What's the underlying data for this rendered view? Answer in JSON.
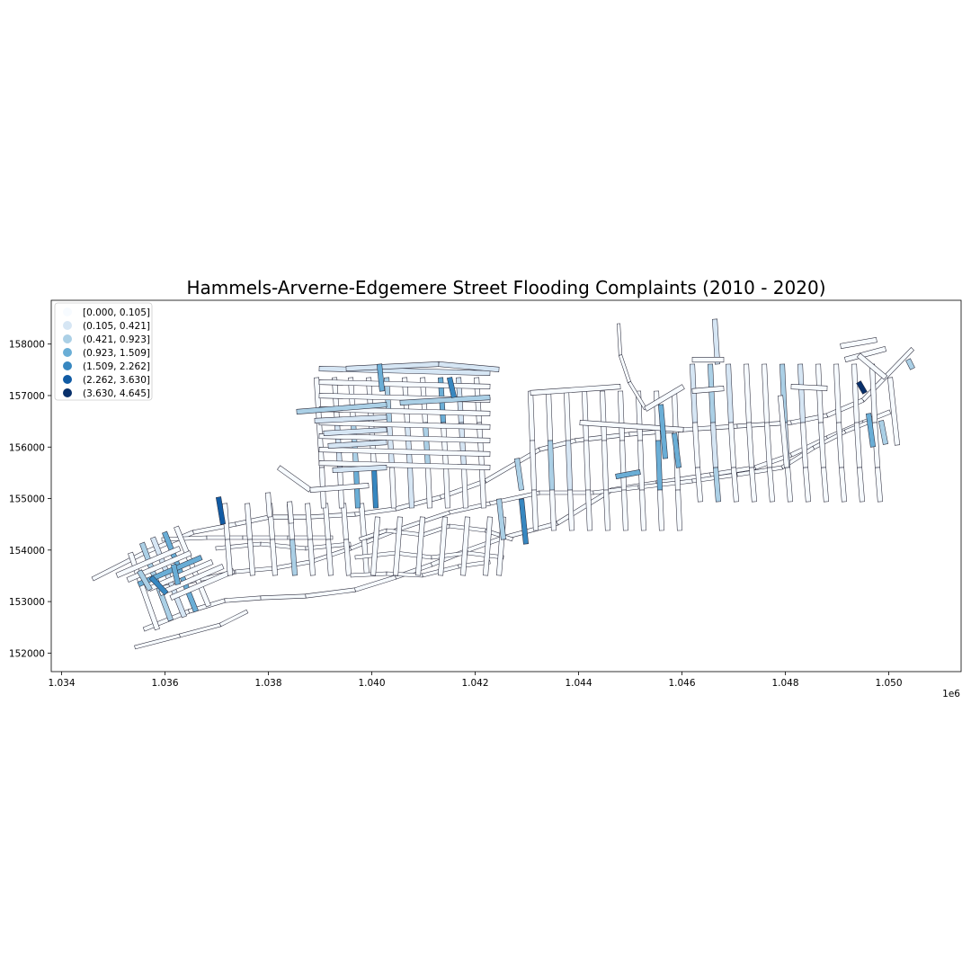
{
  "map": {
    "title": "Hammels-Arverne-Edgemere Street Flooding Complaints (2010 - 2020)",
    "x_axis": {
      "ticks": [
        "1.034",
        "1.036",
        "1.038",
        "1.040",
        "1.042",
        "1.044",
        "1.046",
        "1.048",
        "1.050"
      ],
      "offset_label": "1e6",
      "range": [
        1033800,
        1051400
      ]
    },
    "y_axis": {
      "ticks": [
        "152000",
        "153000",
        "154000",
        "155000",
        "156000",
        "157000",
        "158000"
      ],
      "range": [
        151640,
        158850
      ]
    },
    "legend": {
      "placement": "upper-left",
      "entries": [
        {
          "label": "[0.000, 0.105]",
          "color": "#f7fbff"
        },
        {
          "label": "(0.105, 0.421]",
          "color": "#d6e6f4"
        },
        {
          "label": "(0.421, 0.923]",
          "color": "#abd0e6"
        },
        {
          "label": "(0.923, 1.509]",
          "color": "#6aaed6"
        },
        {
          "label": "(1.509, 2.262]",
          "color": "#3787c0"
        },
        {
          "label": "(2.262, 3.630]",
          "color": "#105ba4"
        },
        {
          "label": "(3.630, 4.645]",
          "color": "#08306b"
        }
      ]
    },
    "classification": "choropleth, 7 classes, Blues colormap"
  }
}
